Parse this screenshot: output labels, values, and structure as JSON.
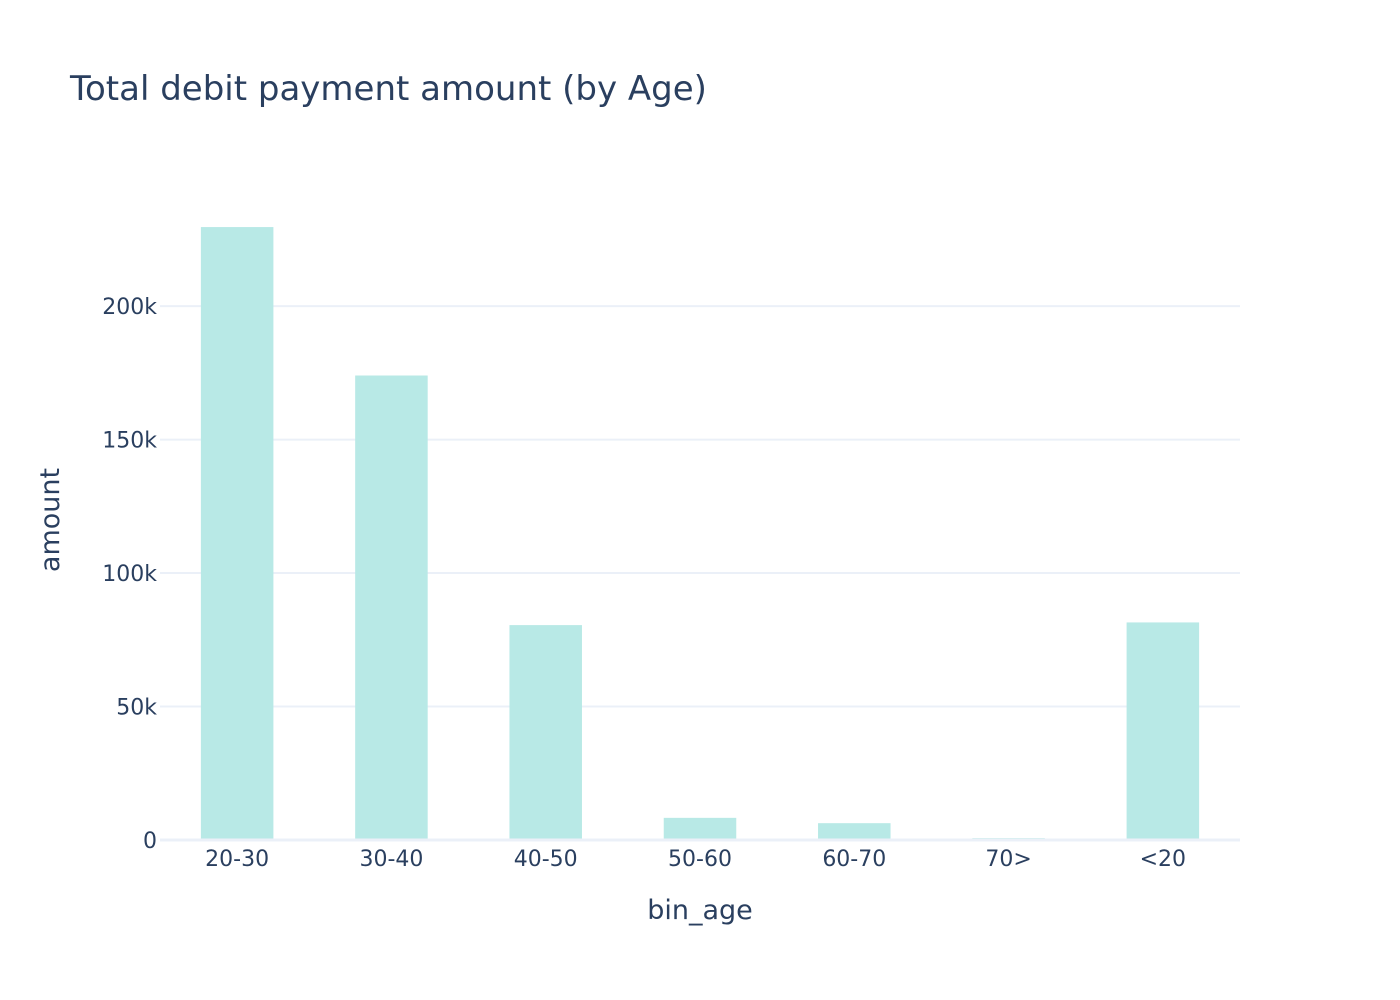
{
  "chart_data": {
    "type": "bar",
    "title": "Total debit payment amount (by Age)",
    "xlabel": "bin_age",
    "ylabel": "amount",
    "categories": [
      "20-30",
      "30-40",
      "40-50",
      "50-60",
      "60-70",
      "70>",
      "<20"
    ],
    "values": [
      229600,
      174000,
      80500,
      8300,
      6300,
      700,
      81500
    ],
    "ylim": [
      0,
      230000
    ],
    "yticks": [
      0,
      50000,
      100000,
      150000,
      200000
    ],
    "ytick_labels": [
      "0",
      "50k",
      "100k",
      "150k",
      "200k"
    ],
    "grid": true,
    "legend": "none",
    "bar_color": "#b8e9e6"
  }
}
